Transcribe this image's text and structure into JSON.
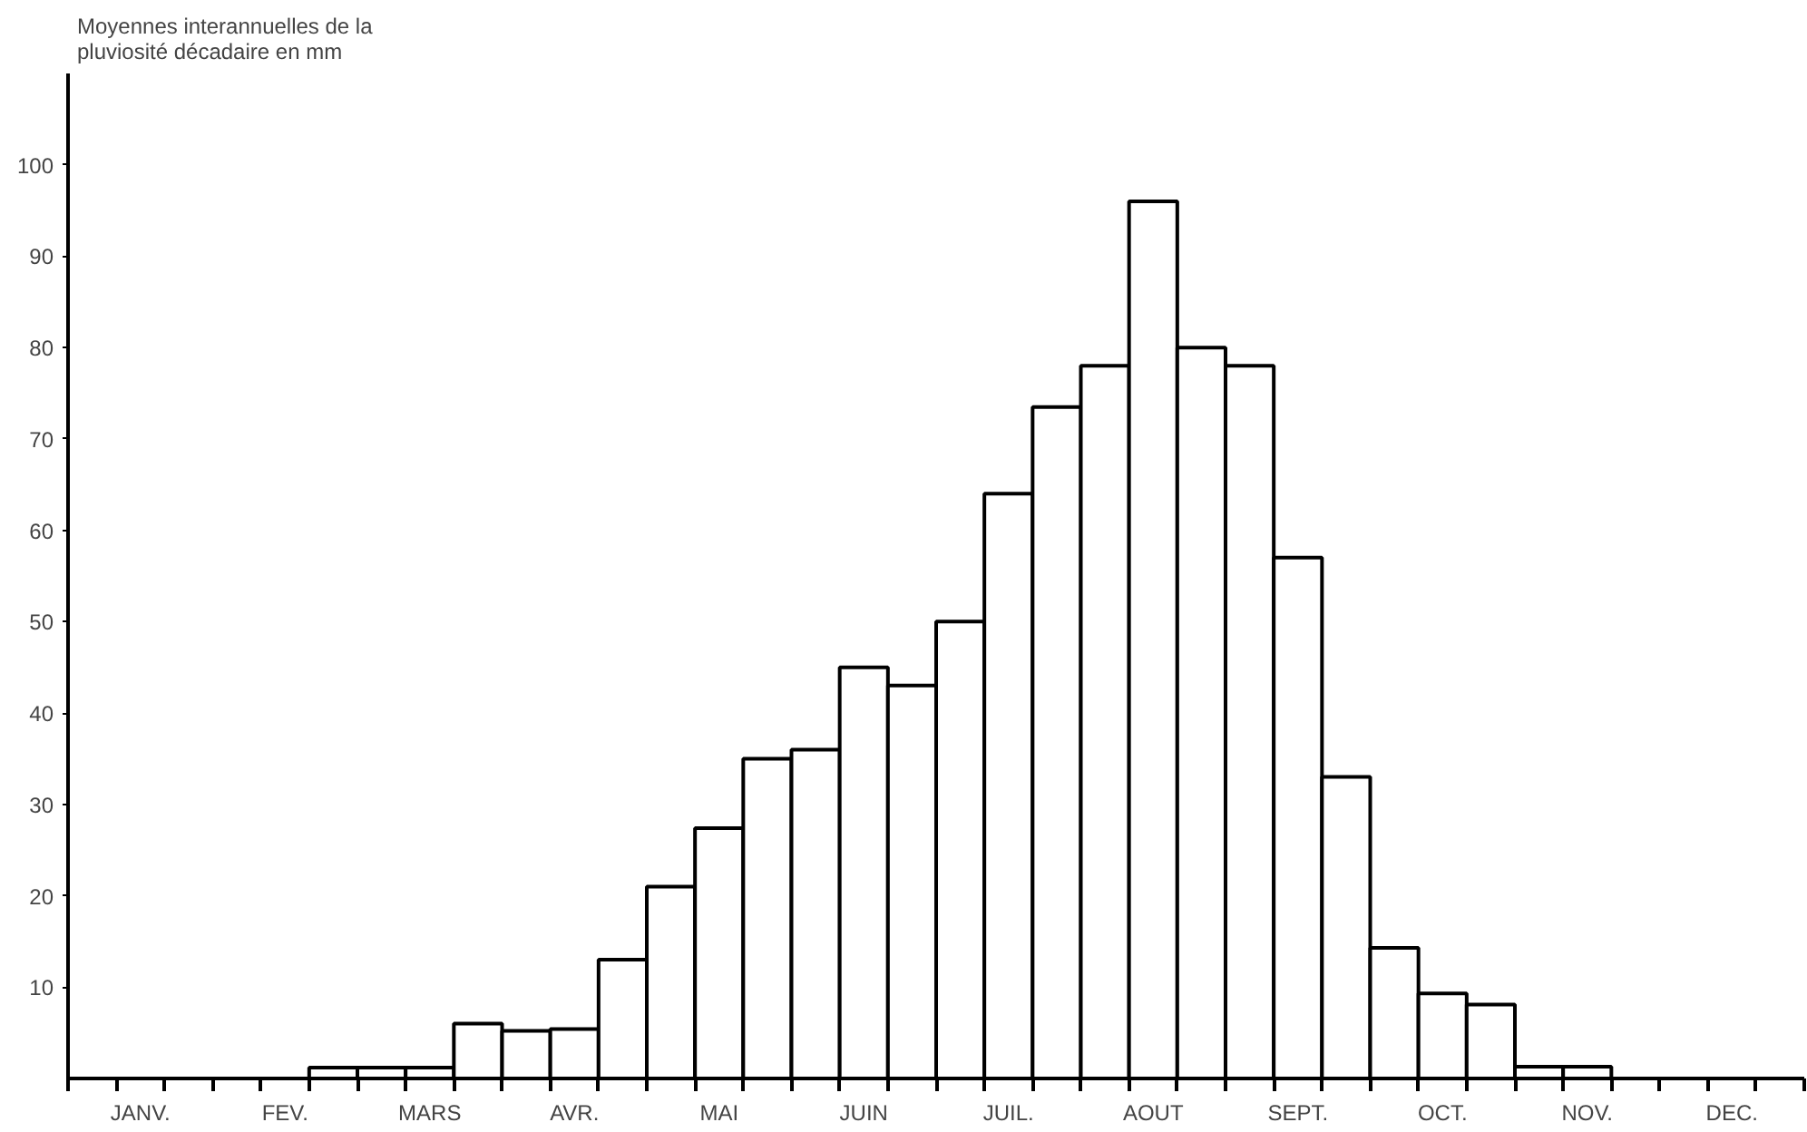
{
  "chart_data": {
    "type": "bar",
    "ylabel": "Moyennes interannuelles de la pluviosité décadaire en mm",
    "categories": [
      null,
      "JANV.",
      null,
      null,
      "FEV.",
      null,
      null,
      "MARS",
      null,
      null,
      "AVR.",
      null,
      null,
      "MAI",
      null,
      null,
      "JUIN",
      null,
      null,
      "JUIL.",
      null,
      null,
      "AOUT",
      null,
      null,
      "SEPT.",
      null,
      null,
      "OCT.",
      null,
      null,
      "NOV.",
      null,
      null,
      "DEC.",
      null
    ],
    "values": [
      0,
      0,
      0,
      0,
      0,
      1.2,
      1.2,
      1.2,
      6,
      5.2,
      5.4,
      13,
      21,
      27.4,
      35,
      36,
      45,
      43,
      50,
      64,
      73.5,
      78,
      96,
      80,
      78,
      57,
      33,
      14.3,
      9.3,
      8.1,
      1.3,
      1.3,
      0,
      0,
      0,
      0
    ],
    "color": "#ffffff",
    "ylim": [
      0,
      110
    ],
    "yticks": [
      10,
      20,
      30,
      40,
      50,
      60,
      70,
      80,
      90,
      100
    ],
    "grid": false
  }
}
